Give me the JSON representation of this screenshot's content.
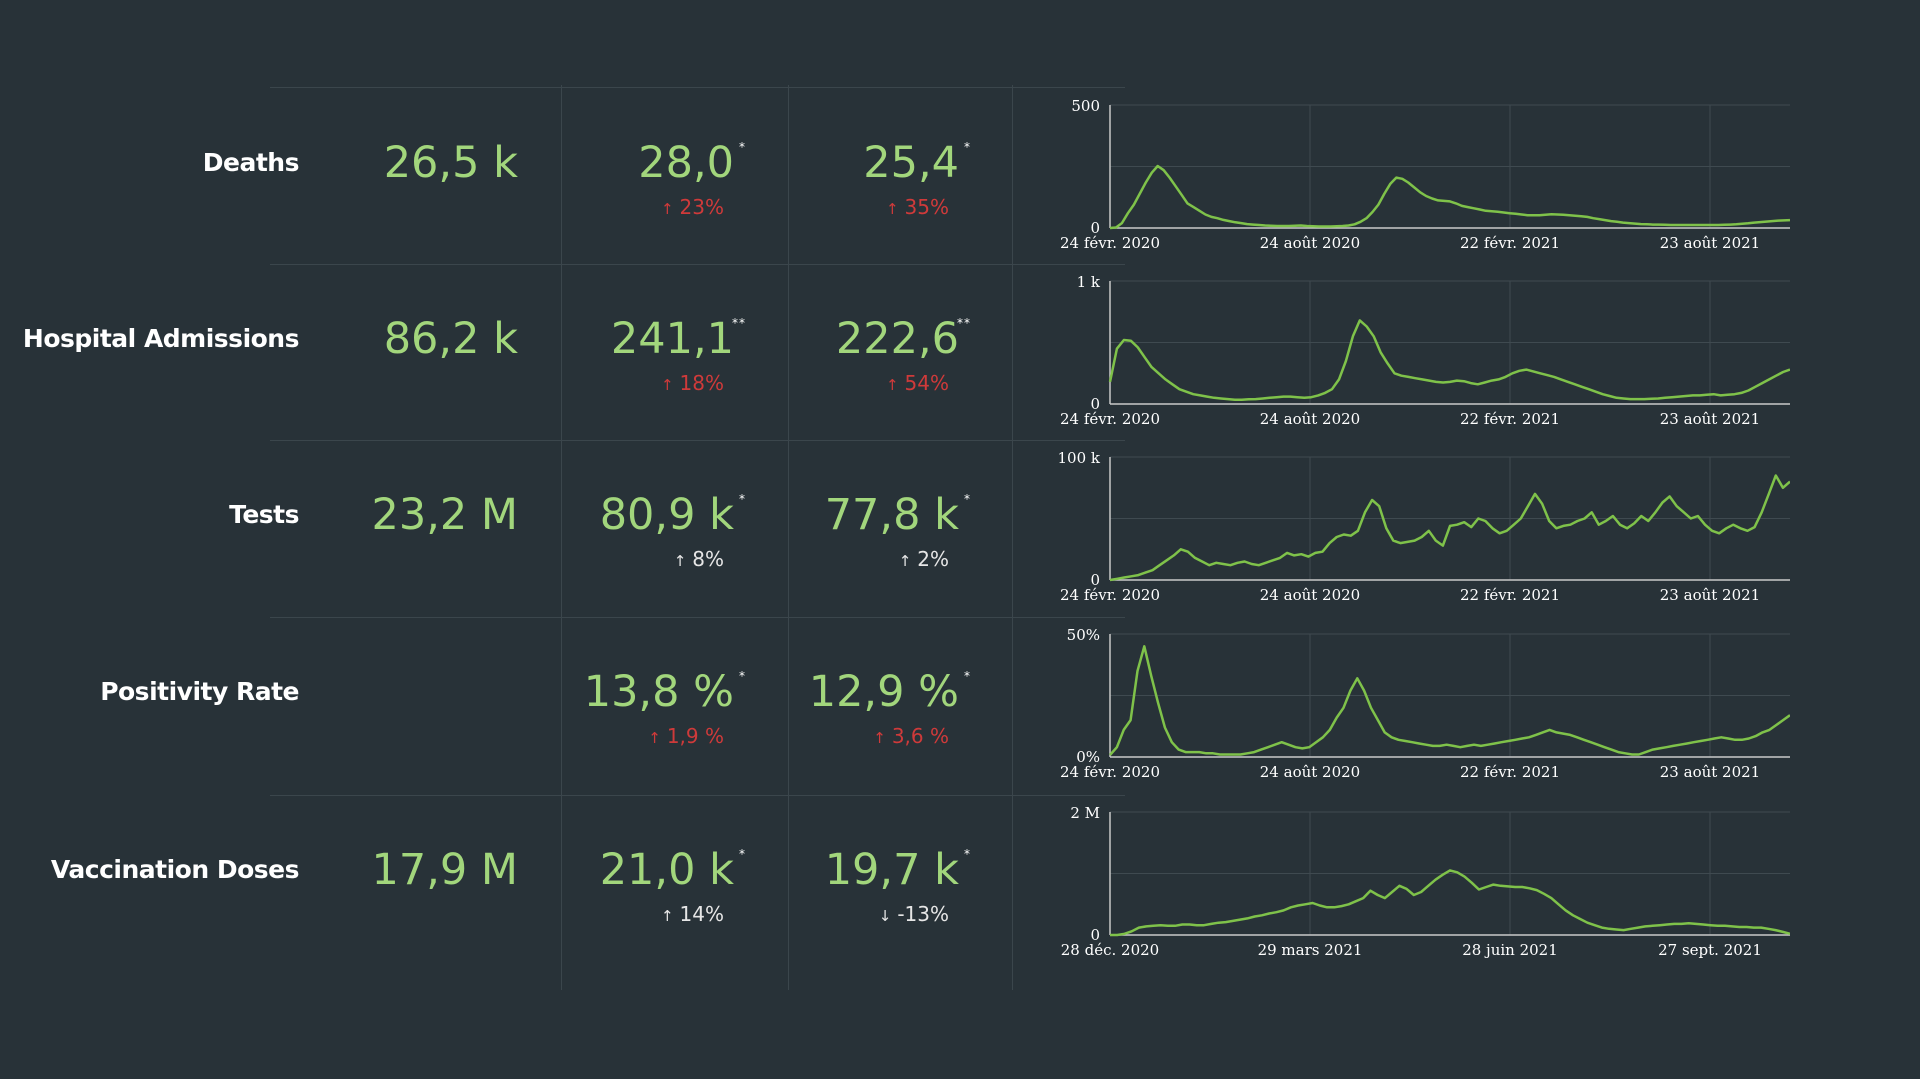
{
  "rows": [
    {
      "label": "Deaths",
      "total": "26,5 k",
      "metric1": {
        "value": "28,0",
        "mark": "*",
        "arrow": "↑",
        "change": "23%",
        "tone": "bad"
      },
      "metric2": {
        "value": "25,4",
        "mark": "*",
        "arrow": "↑",
        "change": "35%",
        "tone": "bad"
      },
      "chart": {
        "ymax_label": "500",
        "ymin_label": "0",
        "ticks": [
          "24 févr. 2020",
          "24 août 2020",
          "22 févr. 2021",
          "23 août 2021"
        ]
      }
    },
    {
      "label": "Hospital Admissions",
      "total": "86,2 k",
      "metric1": {
        "value": "241,1",
        "mark": "**",
        "arrow": "↑",
        "change": "18%",
        "tone": "bad"
      },
      "metric2": {
        "value": "222,6",
        "mark": "**",
        "arrow": "↑",
        "change": "54%",
        "tone": "bad"
      },
      "chart": {
        "ymax_label": "1 k",
        "ymin_label": "0",
        "ticks": [
          "24 févr. 2020",
          "24 août 2020",
          "22 févr. 2021",
          "23 août 2021"
        ]
      }
    },
    {
      "label": "Tests",
      "total": "23,2 M",
      "metric1": {
        "value": "80,9 k",
        "mark": "*",
        "arrow": "↑",
        "change": "8%",
        "tone": "neutral"
      },
      "metric2": {
        "value": "77,8 k",
        "mark": "*",
        "arrow": "↑",
        "change": "2%",
        "tone": "neutral"
      },
      "chart": {
        "ymax_label": "100 k",
        "ymin_label": "0",
        "ticks": [
          "24 févr. 2020",
          "24 août 2020",
          "22 févr. 2021",
          "23 août 2021"
        ]
      }
    },
    {
      "label": "Positivity Rate",
      "total": "",
      "metric1": {
        "value": "13,8 %",
        "mark": "*",
        "arrow": "↑",
        "change": "1,9 %",
        "tone": "bad"
      },
      "metric2": {
        "value": "12,9 %",
        "mark": "*",
        "arrow": "↑",
        "change": "3,6 %",
        "tone": "bad"
      },
      "chart": {
        "ymax_label": "50%",
        "ymin_label": "0%",
        "ticks": [
          "24 févr. 2020",
          "24 août 2020",
          "22 févr. 2021",
          "23 août 2021"
        ]
      }
    },
    {
      "label": "Vaccination Doses",
      "total": "17,9 M",
      "metric1": {
        "value": "21,0 k",
        "mark": "*",
        "arrow": "↑",
        "change": "14%",
        "tone": "neutral"
      },
      "metric2": {
        "value": "19,7 k",
        "mark": "*",
        "arrow": "↓",
        "change": "-13%",
        "tone": "neutral"
      },
      "chart": {
        "ymax_label": "2 M",
        "ymin_label": "0",
        "ticks": [
          "28 déc. 2020",
          "29 mars 2021",
          "28 juin 2021",
          "27 sept. 2021"
        ]
      }
    }
  ],
  "colors": {
    "background": "#283238",
    "value": "#a2d67c",
    "line": "#7fc24a",
    "bad": "#cf3a3a",
    "neutral": "#e6e6e6",
    "label": "#ffffff",
    "grid": "#3b464c"
  },
  "chart_data": [
    {
      "type": "line",
      "series": [
        {
          "values": [
            0,
            2,
            20,
            60,
            95,
            140,
            185,
            225,
            252,
            235,
            205,
            170,
            135,
            100,
            85,
            70,
            55,
            45,
            40,
            33,
            28,
            23,
            20,
            16,
            14,
            12,
            10,
            9,
            8,
            8,
            8,
            9,
            10,
            8,
            7,
            6,
            6,
            6,
            7,
            8,
            10,
            15,
            25,
            40,
            65,
            95,
            140,
            180,
            205,
            200,
            185,
            165,
            145,
            130,
            120,
            112,
            110,
            108,
            100,
            90,
            85,
            80,
            75,
            70,
            68,
            66,
            63,
            60,
            58,
            55,
            52,
            52,
            52,
            54,
            56,
            55,
            54,
            52,
            50,
            48,
            45,
            40,
            36,
            32,
            28,
            25,
            22,
            20,
            18,
            16,
            15,
            14,
            14,
            13,
            12,
            12,
            12,
            12,
            12,
            12,
            12,
            12,
            12,
            13,
            14,
            15,
            17,
            19,
            22,
            24,
            26,
            28,
            30,
            31,
            32
          ]
        }
      ]
    },
    {
      "type": "line",
      "series": [
        {
          "values": [
            180,
            450,
            520,
            515,
            460,
            380,
            300,
            250,
            200,
            160,
            120,
            100,
            80,
            70,
            60,
            50,
            45,
            40,
            35,
            35,
            38,
            40,
            45,
            50,
            55,
            60,
            60,
            55,
            50,
            55,
            70,
            90,
            120,
            200,
            350,
            550,
            680,
            630,
            550,
            420,
            330,
            250,
            230,
            220,
            210,
            200,
            190,
            180,
            175,
            180,
            190,
            185,
            170,
            160,
            175,
            190,
            200,
            220,
            250,
            270,
            280,
            265,
            250,
            235,
            220,
            200,
            180,
            160,
            140,
            120,
            100,
            80,
            65,
            50,
            45,
            40,
            40,
            40,
            42,
            45,
            50,
            55,
            60,
            65,
            70,
            70,
            75,
            80,
            70,
            75,
            80,
            90,
            110,
            140,
            170,
            200,
            230,
            260,
            280
          ]
        }
      ]
    },
    {
      "type": "line",
      "series": [
        {
          "values": [
            0,
            1000,
            2000,
            3000,
            4000,
            6000,
            8000,
            12000,
            16000,
            20000,
            25000,
            23000,
            18000,
            15000,
            12000,
            14000,
            13000,
            12000,
            14000,
            15000,
            13000,
            12000,
            14000,
            16000,
            18000,
            22000,
            20000,
            21000,
            19000,
            22000,
            23000,
            30000,
            35000,
            37000,
            36000,
            40000,
            55000,
            65000,
            60000,
            42000,
            32000,
            30000,
            31000,
            32000,
            35000,
            40000,
            32000,
            28000,
            44000,
            45000,
            47000,
            43000,
            50000,
            48000,
            42000,
            38000,
            40000,
            45000,
            50000,
            60000,
            70000,
            62000,
            48000,
            42000,
            44000,
            45000,
            48000,
            50000,
            55000,
            45000,
            48000,
            52000,
            45000,
            42000,
            46000,
            52000,
            48000,
            55000,
            63000,
            68000,
            60000,
            55000,
            50000,
            52000,
            45000,
            40000,
            38000,
            42000,
            45000,
            42000,
            40000,
            43000,
            55000,
            70000,
            85000,
            75000,
            80000
          ]
        }
      ]
    },
    {
      "type": "line",
      "series": [
        {
          "values": [
            0.8,
            4,
            11,
            15,
            35,
            45,
            33,
            22,
            12,
            6,
            3,
            2,
            2,
            2,
            1.5,
            1.5,
            1,
            1,
            1,
            1,
            1.5,
            2,
            3,
            4,
            5,
            6,
            5,
            4,
            3.5,
            4,
            6,
            8,
            11,
            16,
            20,
            27,
            32,
            27,
            20,
            15,
            10,
            8,
            7,
            6.5,
            6,
            5.5,
            5,
            4.5,
            4.5,
            5,
            4.5,
            4,
            4.5,
            5,
            4.5,
            5,
            5.5,
            6,
            6.5,
            7,
            7.5,
            8,
            9,
            10,
            11,
            10,
            9.5,
            9,
            8,
            7,
            6,
            5,
            4,
            3,
            2,
            1.5,
            1,
            1,
            2,
            3,
            3.5,
            4,
            4.5,
            5,
            5.5,
            6,
            6.5,
            7,
            7.5,
            8,
            7.5,
            7,
            7,
            7.5,
            8.5,
            10,
            11,
            13,
            15,
            17
          ]
        }
      ]
    },
    {
      "type": "line",
      "series": [
        {
          "values": [
            0,
            0,
            20000,
            60000,
            120000,
            140000,
            150000,
            160000,
            150000,
            150000,
            170000,
            170000,
            160000,
            160000,
            180000,
            200000,
            210000,
            230000,
            250000,
            270000,
            300000,
            320000,
            350000,
            370000,
            400000,
            450000,
            480000,
            500000,
            520000,
            480000,
            450000,
            450000,
            470000,
            500000,
            550000,
            600000,
            720000,
            650000,
            600000,
            700000,
            800000,
            750000,
            650000,
            700000,
            800000,
            900000,
            980000,
            1050000,
            1020000,
            950000,
            850000,
            740000,
            780000,
            820000,
            800000,
            790000,
            780000,
            780000,
            760000,
            730000,
            670000,
            600000,
            500000,
            400000,
            320000,
            260000,
            200000,
            160000,
            120000,
            100000,
            90000,
            80000,
            100000,
            120000,
            140000,
            150000,
            160000,
            170000,
            180000,
            180000,
            190000,
            180000,
            170000,
            160000,
            150000,
            150000,
            140000,
            130000,
            130000,
            120000,
            120000,
            100000,
            80000,
            50000,
            20000
          ]
        }
      ]
    }
  ]
}
